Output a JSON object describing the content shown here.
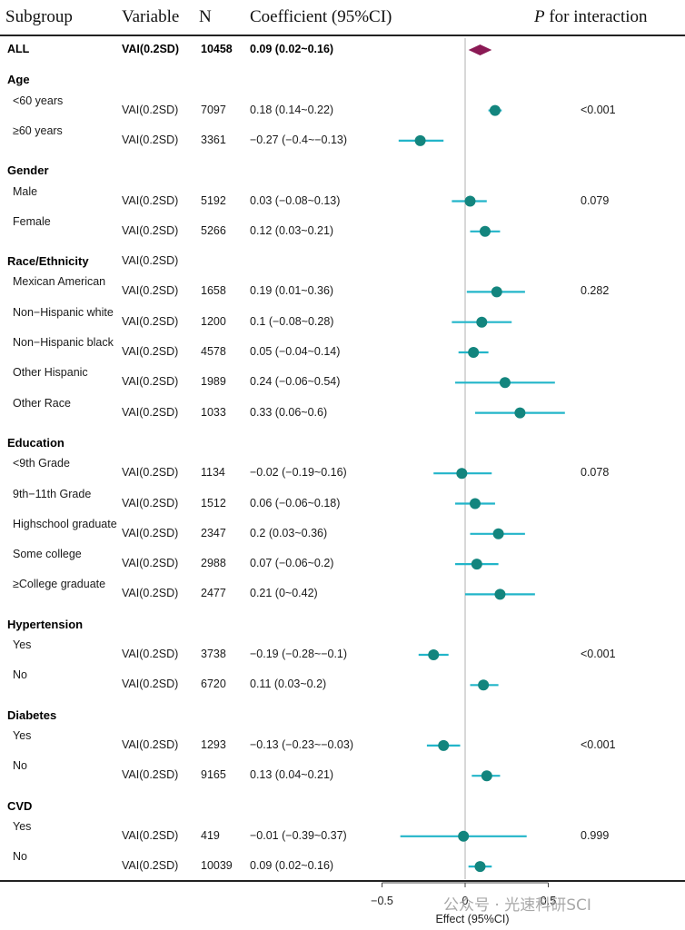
{
  "headers": {
    "subgroup": "Subgroup",
    "variable": "Variable",
    "n": "N",
    "coefficient": "Coefficient (95%CI)",
    "p_italic": "P",
    "p_rest": " for interaction"
  },
  "rows": [
    {
      "type": "overall",
      "label": "ALL",
      "variable": "VAI(0.2SD)",
      "n": "10458",
      "coef_text": "0.09 (0.02~0.16)",
      "p": "",
      "est": 0.09,
      "lo": 0.02,
      "hi": 0.16
    },
    {
      "type": "group",
      "label": "Age",
      "variable": "",
      "n": "",
      "coef_text": "",
      "p": ""
    },
    {
      "type": "sub",
      "label": "<60 years",
      "variable": "VAI(0.2SD)",
      "n": "7097",
      "coef_text": "0.18 (0.14~0.22)",
      "p": "<0.001",
      "est": 0.18,
      "lo": 0.14,
      "hi": 0.22
    },
    {
      "type": "sub",
      "label": "≥60 years",
      "variable": "VAI(0.2SD)",
      "n": "3361",
      "coef_text": "−0.27 (−0.4~−0.13)",
      "p": "",
      "est": -0.27,
      "lo": -0.4,
      "hi": -0.13
    },
    {
      "type": "group",
      "label": "Gender",
      "variable": "",
      "n": "",
      "coef_text": "",
      "p": ""
    },
    {
      "type": "sub",
      "label": "Male",
      "variable": "VAI(0.2SD)",
      "n": "5192",
      "coef_text": "0.03 (−0.08~0.13)",
      "p": "0.079",
      "est": 0.03,
      "lo": -0.08,
      "hi": 0.13
    },
    {
      "type": "sub",
      "label": "Female",
      "variable": "VAI(0.2SD)",
      "n": "5266",
      "coef_text": "0.12 (0.03~0.21)",
      "p": "",
      "est": 0.12,
      "lo": 0.03,
      "hi": 0.21
    },
    {
      "type": "group",
      "label": "Race/Ethnicity",
      "variable": "VAI(0.2SD)",
      "n": "",
      "coef_text": "",
      "p": ""
    },
    {
      "type": "sub",
      "label": "Mexican American",
      "variable": "VAI(0.2SD)",
      "n": "1658",
      "coef_text": "0.19 (0.01~0.36)",
      "p": "0.282",
      "est": 0.19,
      "lo": 0.01,
      "hi": 0.36
    },
    {
      "type": "sub",
      "label": "Non−Hispanic white",
      "variable": "VAI(0.2SD)",
      "n": "1200",
      "coef_text": "0.1 (−0.08~0.28)",
      "p": "",
      "est": 0.1,
      "lo": -0.08,
      "hi": 0.28
    },
    {
      "type": "sub",
      "label": "Non−Hispanic black",
      "variable": "VAI(0.2SD)",
      "n": "4578",
      "coef_text": "0.05 (−0.04~0.14)",
      "p": "",
      "est": 0.05,
      "lo": -0.04,
      "hi": 0.14
    },
    {
      "type": "sub",
      "label": "Other Hispanic",
      "variable": "VAI(0.2SD)",
      "n": "1989",
      "coef_text": "0.24 (−0.06~0.54)",
      "p": "",
      "est": 0.24,
      "lo": -0.06,
      "hi": 0.54
    },
    {
      "type": "sub",
      "label": "Other Race",
      "variable": "VAI(0.2SD)",
      "n": "1033",
      "coef_text": "0.33 (0.06~0.6)",
      "p": "",
      "est": 0.33,
      "lo": 0.06,
      "hi": 0.6
    },
    {
      "type": "group",
      "label": "Education",
      "variable": "",
      "n": "",
      "coef_text": "",
      "p": ""
    },
    {
      "type": "sub",
      "label": "<9th Grade",
      "variable": "VAI(0.2SD)",
      "n": "1134",
      "coef_text": "−0.02 (−0.19~0.16)",
      "p": "0.078",
      "est": -0.02,
      "lo": -0.19,
      "hi": 0.16
    },
    {
      "type": "sub",
      "label": "9th−11th Grade",
      "variable": "VAI(0.2SD)",
      "n": "1512",
      "coef_text": "0.06 (−0.06~0.18)",
      "p": "",
      "est": 0.06,
      "lo": -0.06,
      "hi": 0.18
    },
    {
      "type": "sub",
      "label": "Highschool graduate",
      "variable": "VAI(0.2SD)",
      "n": "2347",
      "coef_text": "0.2 (0.03~0.36)",
      "p": "",
      "est": 0.2,
      "lo": 0.03,
      "hi": 0.36
    },
    {
      "type": "sub",
      "label": "Some college",
      "variable": "VAI(0.2SD)",
      "n": "2988",
      "coef_text": "0.07 (−0.06~0.2)",
      "p": "",
      "est": 0.07,
      "lo": -0.06,
      "hi": 0.2
    },
    {
      "type": "sub",
      "label": "≥College graduate",
      "variable": "VAI(0.2SD)",
      "n": "2477",
      "coef_text": "0.21 (0~0.42)",
      "p": "",
      "est": 0.21,
      "lo": 0.0,
      "hi": 0.42
    },
    {
      "type": "group",
      "label": "Hypertension",
      "variable": "",
      "n": "",
      "coef_text": "",
      "p": ""
    },
    {
      "type": "sub",
      "label": "Yes",
      "variable": "VAI(0.2SD)",
      "n": "3738",
      "coef_text": "−0.19 (−0.28~−0.1)",
      "p": "<0.001",
      "est": -0.19,
      "lo": -0.28,
      "hi": -0.1
    },
    {
      "type": "sub",
      "label": "No",
      "variable": "VAI(0.2SD)",
      "n": "6720",
      "coef_text": "0.11 (0.03~0.2)",
      "p": "",
      "est": 0.11,
      "lo": 0.03,
      "hi": 0.2
    },
    {
      "type": "group",
      "label": "Diabetes",
      "variable": "",
      "n": "",
      "coef_text": "",
      "p": ""
    },
    {
      "type": "sub",
      "label": "Yes",
      "variable": "VAI(0.2SD)",
      "n": "1293",
      "coef_text": "−0.13 (−0.23~−0.03)",
      "p": "<0.001",
      "est": -0.13,
      "lo": -0.23,
      "hi": -0.03
    },
    {
      "type": "sub",
      "label": "No",
      "variable": "VAI(0.2SD)",
      "n": "9165",
      "coef_text": "0.13 (0.04~0.21)",
      "p": "",
      "est": 0.13,
      "lo": 0.04,
      "hi": 0.21
    },
    {
      "type": "group",
      "label": "CVD",
      "variable": "",
      "n": "",
      "coef_text": "",
      "p": ""
    },
    {
      "type": "sub",
      "label": "Yes",
      "variable": "VAI(0.2SD)",
      "n": "419",
      "coef_text": "−0.01 (−0.39~0.37)",
      "p": "0.999",
      "est": -0.01,
      "lo": -0.39,
      "hi": 0.37
    },
    {
      "type": "sub",
      "label": "No",
      "variable": "VAI(0.2SD)",
      "n": "10039",
      "coef_text": "0.09 (0.02~0.16)",
      "p": "",
      "est": 0.09,
      "lo": 0.02,
      "hi": 0.16
    }
  ],
  "chart_data": {
    "type": "forest",
    "xlabel": "Effect (95%CI)",
    "xticks": [
      -0.5,
      0,
      0.5
    ],
    "xtick_labels": [
      "−0.5",
      "0",
      "0.5"
    ],
    "reference_line": 0,
    "colors": {
      "point": "#13857e",
      "ci": "#22b5c9",
      "overall": "#8b1a55",
      "refline": "#bdbdbd"
    }
  },
  "watermark": "公众号 · 光速科研SCI"
}
